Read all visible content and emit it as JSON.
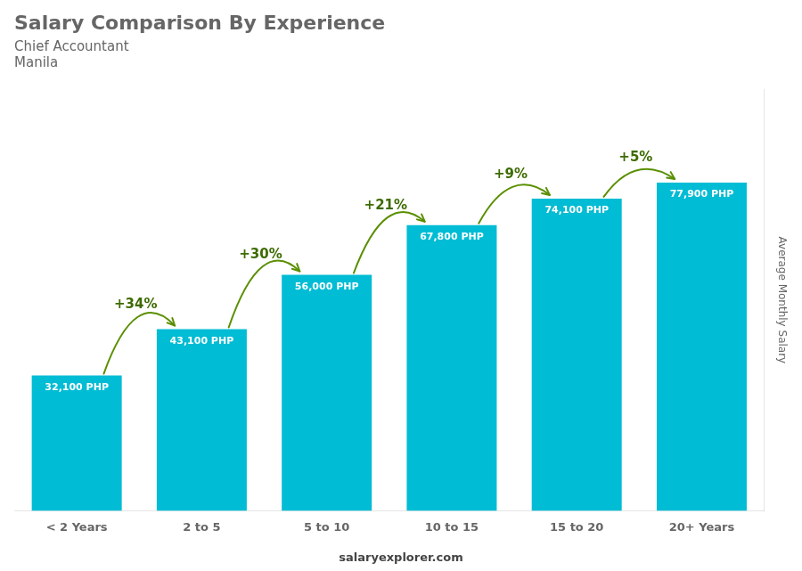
{
  "chart_data": {
    "type": "bar",
    "title": "Salary Comparison By Experience",
    "subtitle": [
      "Chief Accountant",
      "Manila"
    ],
    "ylabel": "Average Monthly Salary",
    "categories": [
      "< 2 Years",
      "2 to 5",
      "5 to 10",
      "10 to 15",
      "15 to 20",
      "20+ Years"
    ],
    "values": [
      32100,
      43100,
      56000,
      67800,
      74100,
      77900
    ],
    "value_labels": [
      "32,100 PHP",
      "43,100 PHP",
      "56,000 PHP",
      "67,800 PHP",
      "74,100 PHP",
      "77,900 PHP"
    ],
    "data_labels": true,
    "color": "#00bcd4",
    "ylim": [
      0,
      100000
    ],
    "tick_labels": "x",
    "grid": false,
    "annotations": [
      {
        "text": "+34%",
        "from": "< 2 Years",
        "to": "2 to 5"
      },
      {
        "text": "+30%",
        "from": "2 to 5",
        "to": "5 to 10"
      },
      {
        "text": "+21%",
        "from": "5 to 10",
        "to": "10 to 15"
      },
      {
        "text": "+9%",
        "from": "10 to 15",
        "to": "15 to 20"
      },
      {
        "text": "+5%",
        "from": "15 to 20",
        "to": "20+ Years"
      },
      {
        "text": "salaryexplorer.com"
      }
    ]
  }
}
